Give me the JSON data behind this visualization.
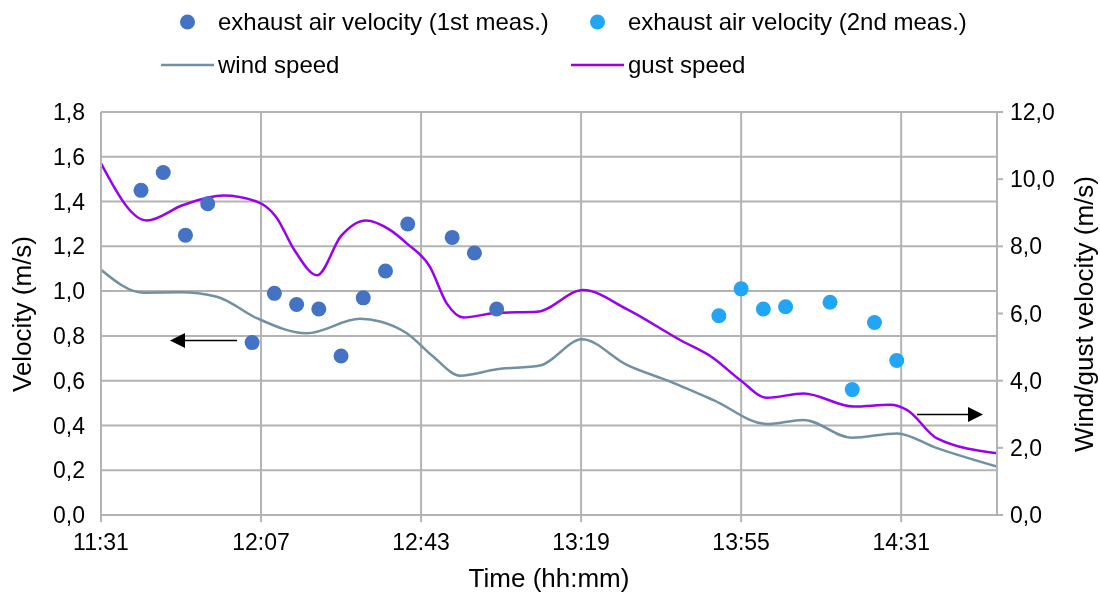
{
  "chart_data": {
    "type": "scatter",
    "xlabel": "Time (hh:mm)",
    "ylabel": "Velocity (m/s)",
    "y2label": "Wind/gust velocity (m/s)",
    "xlim": [
      11.5167,
      14.876
    ],
    "xticks": [
      {
        "value": 11.5167,
        "label": "11:31"
      },
      {
        "value": 12.1167,
        "label": "12:07"
      },
      {
        "value": 12.7167,
        "label": "12:43"
      },
      {
        "value": 13.3167,
        "label": "13:19"
      },
      {
        "value": 13.9167,
        "label": "13:55"
      },
      {
        "value": 14.5167,
        "label": "14:31"
      }
    ],
    "ylim": [
      0,
      1.8
    ],
    "yticks": [
      {
        "value": 0,
        "label": "0,0"
      },
      {
        "value": 0.2,
        "label": "0,2"
      },
      {
        "value": 0.4,
        "label": "0,4"
      },
      {
        "value": 0.6,
        "label": "0,6"
      },
      {
        "value": 0.8,
        "label": "0,8"
      },
      {
        "value": 1,
        "label": "1,0"
      },
      {
        "value": 1.2,
        "label": "1,2"
      },
      {
        "value": 1.4,
        "label": "1,4"
      },
      {
        "value": 1.6,
        "label": "1,6"
      },
      {
        "value": 1.8,
        "label": "1,8"
      }
    ],
    "y2lim": [
      0,
      12
    ],
    "y2ticks": [
      {
        "value": 0,
        "label": "0,0"
      },
      {
        "value": 2,
        "label": "2,0"
      },
      {
        "value": 4,
        "label": "4,0"
      },
      {
        "value": 6,
        "label": "6,0"
      },
      {
        "value": 8,
        "label": "8,0"
      },
      {
        "value": 10,
        "label": "10,0"
      },
      {
        "value": 12,
        "label": "12,0"
      }
    ],
    "grid": true,
    "legend": "top",
    "series": [
      {
        "name": "exhaust air velocity (1st meas.)",
        "marker": "circle",
        "color": "#4472c4",
        "x": [
          11.6667,
          11.75,
          11.8333,
          11.9167,
          12.0833,
          12.1667,
          12.25,
          12.3333,
          12.4167,
          12.5,
          12.5833,
          12.6667,
          12.8333,
          12.9167,
          13.0
        ],
        "values": [
          1.45,
          1.53,
          1.25,
          1.39,
          0.77,
          0.99,
          0.94,
          0.92,
          0.71,
          0.97,
          1.09,
          1.3,
          1.24,
          1.17,
          0.92
        ]
      },
      {
        "name": "exhaust air velocity (2nd meas.)",
        "marker": "circle",
        "color": "#21a5f5",
        "x": [
          13.8333,
          13.9167,
          14.0,
          14.0833,
          14.25,
          14.3333,
          14.4167,
          14.5
        ],
        "values": [
          0.89,
          1.01,
          0.92,
          0.93,
          0.95,
          0.56,
          0.86,
          0.69
        ]
      },
      {
        "name": "wind speed",
        "type": "line",
        "axis": "y2",
        "color": "#7190a2",
        "x": [
          11.5167,
          11.675,
          11.813,
          11.951,
          12.101,
          12.288,
          12.488,
          12.563,
          12.663,
          12.763,
          12.863,
          13.001,
          13.163,
          13.32,
          13.488,
          13.651,
          13.813,
          14.013,
          14.151,
          14.332,
          14.501,
          14.651,
          14.876
        ],
        "values": [
          7.3,
          6.62,
          6.63,
          6.5,
          5.86,
          5.41,
          5.84,
          5.76,
          5.41,
          4.71,
          4.15,
          4.34,
          4.45,
          5.23,
          4.47,
          3.97,
          3.42,
          2.71,
          2.83,
          2.3,
          2.43,
          1.99,
          1.44
        ]
      },
      {
        "name": "gust speed",
        "type": "line",
        "axis": "y2",
        "color": "#9900ee",
        "x": [
          11.5167,
          11.688,
          11.825,
          11.975,
          12.101,
          12.172,
          12.244,
          12.327,
          12.417,
          12.51,
          12.6,
          12.663,
          12.75,
          12.813,
          12.875,
          13.001,
          13.151,
          13.325,
          13.488,
          13.688,
          13.813,
          13.913,
          14.013,
          14.151,
          14.338,
          14.476,
          14.538,
          14.651,
          14.876
        ],
        "values": [
          10.47,
          8.77,
          9.23,
          9.51,
          9.33,
          8.89,
          7.86,
          7.14,
          8.31,
          8.77,
          8.49,
          8.09,
          7.39,
          6.3,
          5.88,
          6.02,
          6.05,
          6.7,
          6.13,
          5.21,
          4.67,
          4.02,
          3.49,
          3.62,
          3.23,
          3.28,
          3.13,
          2.28,
          1.84
        ]
      }
    ]
  }
}
